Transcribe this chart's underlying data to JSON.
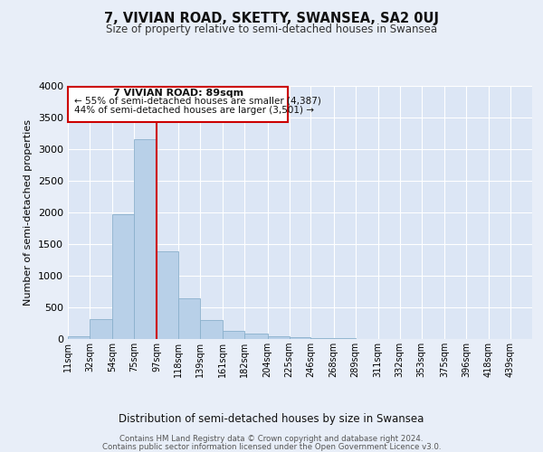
{
  "title": "7, VIVIAN ROAD, SKETTY, SWANSEA, SA2 0UJ",
  "subtitle": "Size of property relative to semi-detached houses in Swansea",
  "xlabel": "Distribution of semi-detached houses by size in Swansea",
  "ylabel": "Number of semi-detached properties",
  "bar_color": "#b8d0e8",
  "bar_edge_color": "#8ab0cc",
  "background_color": "#e8eef8",
  "plot_bg_color": "#dce6f5",
  "grid_color": "#ffffff",
  "categories": [
    "11sqm",
    "32sqm",
    "54sqm",
    "75sqm",
    "97sqm",
    "118sqm",
    "139sqm",
    "161sqm",
    "182sqm",
    "204sqm",
    "225sqm",
    "246sqm",
    "268sqm",
    "289sqm",
    "311sqm",
    "332sqm",
    "353sqm",
    "375sqm",
    "396sqm",
    "418sqm",
    "439sqm"
  ],
  "values": [
    50,
    320,
    1970,
    3160,
    1390,
    640,
    300,
    130,
    80,
    40,
    30,
    20,
    10,
    5,
    0,
    0,
    0,
    0,
    0,
    0,
    0
  ],
  "ylim": [
    0,
    4000
  ],
  "yticks": [
    0,
    500,
    1000,
    1500,
    2000,
    2500,
    3000,
    3500,
    4000
  ],
  "annotation_title": "7 VIVIAN ROAD: 89sqm",
  "annotation_line1": "← 55% of semi-detached houses are smaller (4,387)",
  "annotation_line2": "44% of semi-detached houses are larger (3,501) →",
  "property_line_color": "#cc0000",
  "footer_line1": "Contains HM Land Registry data © Crown copyright and database right 2024.",
  "footer_line2": "Contains public sector information licensed under the Open Government Licence v3.0.",
  "bin_edges": [
    11,
    32,
    54,
    75,
    97,
    118,
    139,
    161,
    182,
    204,
    225,
    246,
    268,
    289,
    311,
    332,
    353,
    375,
    396,
    418,
    439,
    460
  ]
}
